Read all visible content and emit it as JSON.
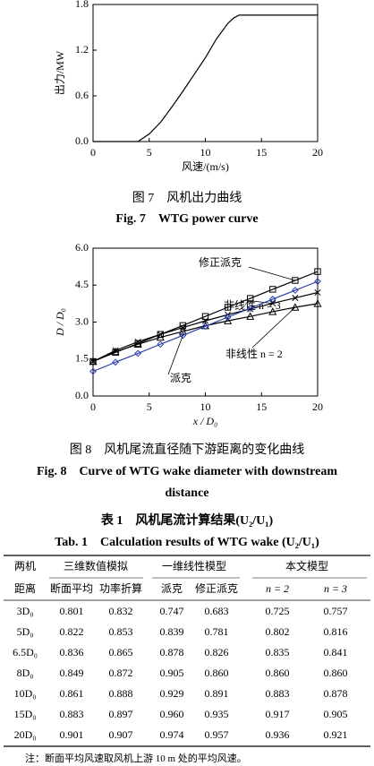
{
  "chart_data": [
    {
      "type": "line",
      "x": [
        0,
        2,
        4,
        5,
        6,
        7,
        8,
        9,
        10,
        11,
        12,
        12.5,
        13,
        14,
        16,
        18,
        20
      ],
      "values": [
        0,
        0,
        0,
        0.1,
        0.25,
        0.45,
        0.66,
        0.88,
        1.1,
        1.35,
        1.55,
        1.62,
        1.66,
        1.66,
        1.66,
        1.66,
        1.66
      ],
      "color": "#000000",
      "xlabel": "风速/(m/s)",
      "ylabel": "出力/MW",
      "xlim": [
        0,
        20
      ],
      "ylim": [
        0,
        1.8
      ],
      "xticks": [
        0,
        5,
        10,
        15,
        20
      ],
      "yticks": [
        {
          "value": 0,
          "label": "0.0"
        },
        0.6,
        1.2,
        1.8
      ],
      "caption": [
        "图 7　风机出力曲线",
        "Fig. 7　WTG power curve"
      ]
    },
    {
      "type": "line",
      "x": [
        0,
        2,
        4,
        6,
        8,
        10,
        12,
        14,
        16,
        18,
        20
      ],
      "series": [
        {
          "name": "修正派克",
          "color": "#000000",
          "marker": "square",
          "values": [
            1.4,
            1.77,
            2.13,
            2.5,
            2.86,
            3.23,
            3.6,
            3.96,
            4.33,
            4.69,
            5.05
          ]
        },
        {
          "name": "非线性 n = 3",
          "color": "#000000",
          "marker": "x",
          "values": [
            1.4,
            1.85,
            2.2,
            2.5,
            2.78,
            3.05,
            3.3,
            3.53,
            3.76,
            3.98,
            4.2
          ]
        },
        {
          "name": "非线性 n = 2",
          "color": "#000000",
          "marker": "triangle",
          "values": [
            1.4,
            1.8,
            2.1,
            2.38,
            2.62,
            2.85,
            3.05,
            3.23,
            3.42,
            3.6,
            3.75
          ]
        },
        {
          "name": "派克",
          "color": "#2b3fa8",
          "marker": "diamond",
          "values": [
            1.0,
            1.37,
            1.73,
            2.1,
            2.46,
            2.83,
            3.2,
            3.56,
            3.93,
            4.29,
            4.65
          ]
        }
      ],
      "xlabel": "x / D₀",
      "ylabel": "D / D₀",
      "xlim": [
        0,
        20
      ],
      "ylim": [
        0,
        6
      ],
      "xticks": [
        0,
        5,
        10,
        15,
        20
      ],
      "yticks": [
        {
          "value": 0,
          "label": "0.0"
        },
        1.5,
        {
          "value": 3,
          "label": "3.0"
        },
        4.5,
        {
          "value": 6,
          "label": "6.0"
        }
      ],
      "caption": [
        "图 8　风机尾流直径随下游距离的变化曲线",
        "Fig. 8　Curve of WTG wake diameter with downstream distance"
      ]
    }
  ],
  "table": {
    "caption": [
      "表 1　风机尾流计算结果(U₂/U₁)",
      "Tab. 1　Calculation results of WTG wake (U₂/U₁)"
    ],
    "header": [
      [
        "两机",
        "三维数值模拟",
        "一维线性模型",
        "本文模型"
      ],
      [
        "距离",
        "断面平均",
        "功率折算",
        "派克",
        "修正派克",
        "n = 2",
        "n = 3"
      ]
    ],
    "rows": [
      [
        "3D₀",
        "0.801",
        "0.832",
        "0.747",
        "0.683",
        "0.725",
        "0.757"
      ],
      [
        "5D₀",
        "0.822",
        "0.853",
        "0.839",
        "0.781",
        "0.802",
        "0.816"
      ],
      [
        "6.5D₀",
        "0.836",
        "0.865",
        "0.878",
        "0.826",
        "0.835",
        "0.841"
      ],
      [
        "8D₀",
        "0.849",
        "0.872",
        "0.905",
        "0.860",
        "0.860",
        "0.860"
      ],
      [
        "10D₀",
        "0.861",
        "0.888",
        "0.929",
        "0.891",
        "0.883",
        "0.878"
      ],
      [
        "15D₀",
        "0.883",
        "0.897",
        "0.960",
        "0.935",
        "0.917",
        "0.905"
      ],
      [
        "20D₀",
        "0.901",
        "0.907",
        "0.974",
        "0.957",
        "0.936",
        "0.921"
      ]
    ],
    "note": "注：断面平均风速取风机上游 10 m 处的平均风速。"
  }
}
